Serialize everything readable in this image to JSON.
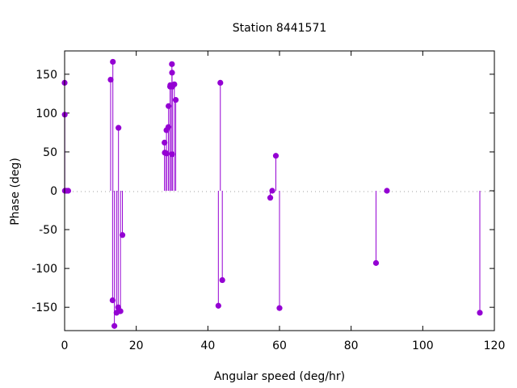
{
  "chart_data": {
    "type": "scatter",
    "style": "impulses-with-points",
    "title": "Station 8441571",
    "xlabel": "Angular speed (deg/hr)",
    "ylabel": "Phase (deg)",
    "xlim": [
      0,
      120
    ],
    "ylim": [
      -180,
      180
    ],
    "x_ticks": [
      0,
      20,
      40,
      60,
      80,
      100,
      120
    ],
    "y_ticks": [
      -150,
      -100,
      -50,
      0,
      50,
      100,
      150
    ],
    "grid": false,
    "legend": "none",
    "color": "#9400d3",
    "zero_line": true,
    "points": [
      {
        "x": 0.0,
        "y": 139
      },
      {
        "x": 0.04,
        "y": 98
      },
      {
        "x": 0.08,
        "y": 0
      },
      {
        "x": 0.55,
        "y": 0
      },
      {
        "x": 1.0,
        "y": 0
      },
      {
        "x": 12.85,
        "y": 143
      },
      {
        "x": 13.39,
        "y": -141
      },
      {
        "x": 13.47,
        "y": 166
      },
      {
        "x": 13.9,
        "y": -174
      },
      {
        "x": 14.5,
        "y": -157
      },
      {
        "x": 14.96,
        "y": -150
      },
      {
        "x": 15.04,
        "y": 81
      },
      {
        "x": 15.59,
        "y": -155
      },
      {
        "x": 16.14,
        "y": -57
      },
      {
        "x": 27.9,
        "y": 62
      },
      {
        "x": 27.97,
        "y": 49
      },
      {
        "x": 28.44,
        "y": 78
      },
      {
        "x": 28.51,
        "y": 48
      },
      {
        "x": 28.98,
        "y": 82
      },
      {
        "x": 29.02,
        "y": 109
      },
      {
        "x": 29.46,
        "y": 134
      },
      {
        "x": 29.53,
        "y": 136
      },
      {
        "x": 29.96,
        "y": 163
      },
      {
        "x": 30.0,
        "y": 152
      },
      {
        "x": 30.04,
        "y": 47
      },
      {
        "x": 30.08,
        "y": 134
      },
      {
        "x": 30.63,
        "y": 137
      },
      {
        "x": 31.02,
        "y": 117
      },
      {
        "x": 42.93,
        "y": -148
      },
      {
        "x": 43.48,
        "y": 139
      },
      {
        "x": 44.03,
        "y": -115
      },
      {
        "x": 57.42,
        "y": -9
      },
      {
        "x": 57.97,
        "y": 0
      },
      {
        "x": 58.98,
        "y": 45
      },
      {
        "x": 60.0,
        "y": -151
      },
      {
        "x": 86.95,
        "y": -93
      },
      {
        "x": 90.0,
        "y": 0
      },
      {
        "x": 115.94,
        "y": -157
      }
    ]
  }
}
